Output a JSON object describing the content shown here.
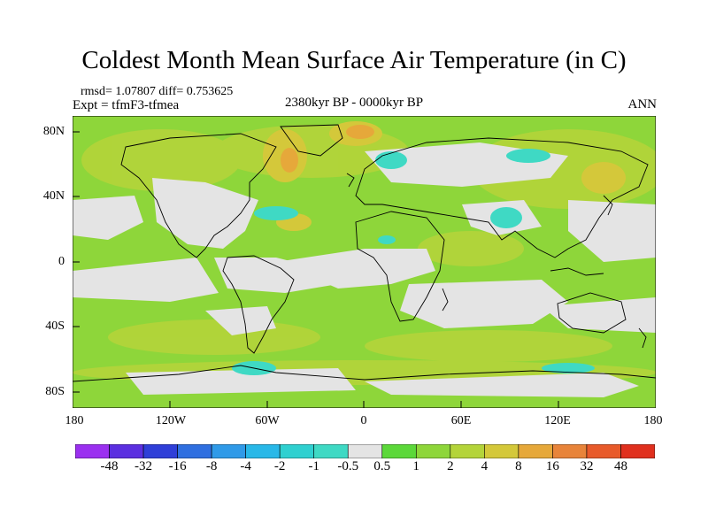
{
  "title": "Coldest Month Mean Surface Air Temperature (in C)",
  "stats": "rmsd= 1.07807 diff= 0.753625",
  "experiment": "Expt = tfmF3-tfmea",
  "period": "2380kyr BP - 0000kyr BP",
  "season": "ANN",
  "lat_labels": [
    "80N",
    "40N",
    "0",
    "40S",
    "80S"
  ],
  "lon_labels": [
    "180",
    "120W",
    "60W",
    "0",
    "60E",
    "120E",
    "180"
  ],
  "colors": {
    "ocean_base": "#8ed63a",
    "land_outline": "#000000",
    "near_zero": "#e4e4e4",
    "warm_orange": "#e8a23a",
    "cool_cyan": "#3fd9c4"
  },
  "colorbar": {
    "labels": [
      "-48",
      "-32",
      "-16",
      "-8",
      "-4",
      "-2",
      "-1",
      "-0.5",
      "0.5",
      "1",
      "2",
      "4",
      "8",
      "16",
      "32",
      "48"
    ],
    "colors": [
      "#9b30f0",
      "#5b2fe0",
      "#2f3fd8",
      "#2f6fe0",
      "#2f9ae8",
      "#28b8e8",
      "#2fd0d0",
      "#3fd9c4",
      "#e4e4e4",
      "#5cd83a",
      "#8ed63a",
      "#b4d43a",
      "#d4c83a",
      "#e6a83a",
      "#e8843a",
      "#e85a2a",
      "#e0301e"
    ]
  },
  "map_data": {
    "type": "filled-contour-difference-map",
    "projection": "equirectangular",
    "lon_range": [
      -180,
      180
    ],
    "lat_range": [
      -90,
      90
    ],
    "units": "C"
  }
}
